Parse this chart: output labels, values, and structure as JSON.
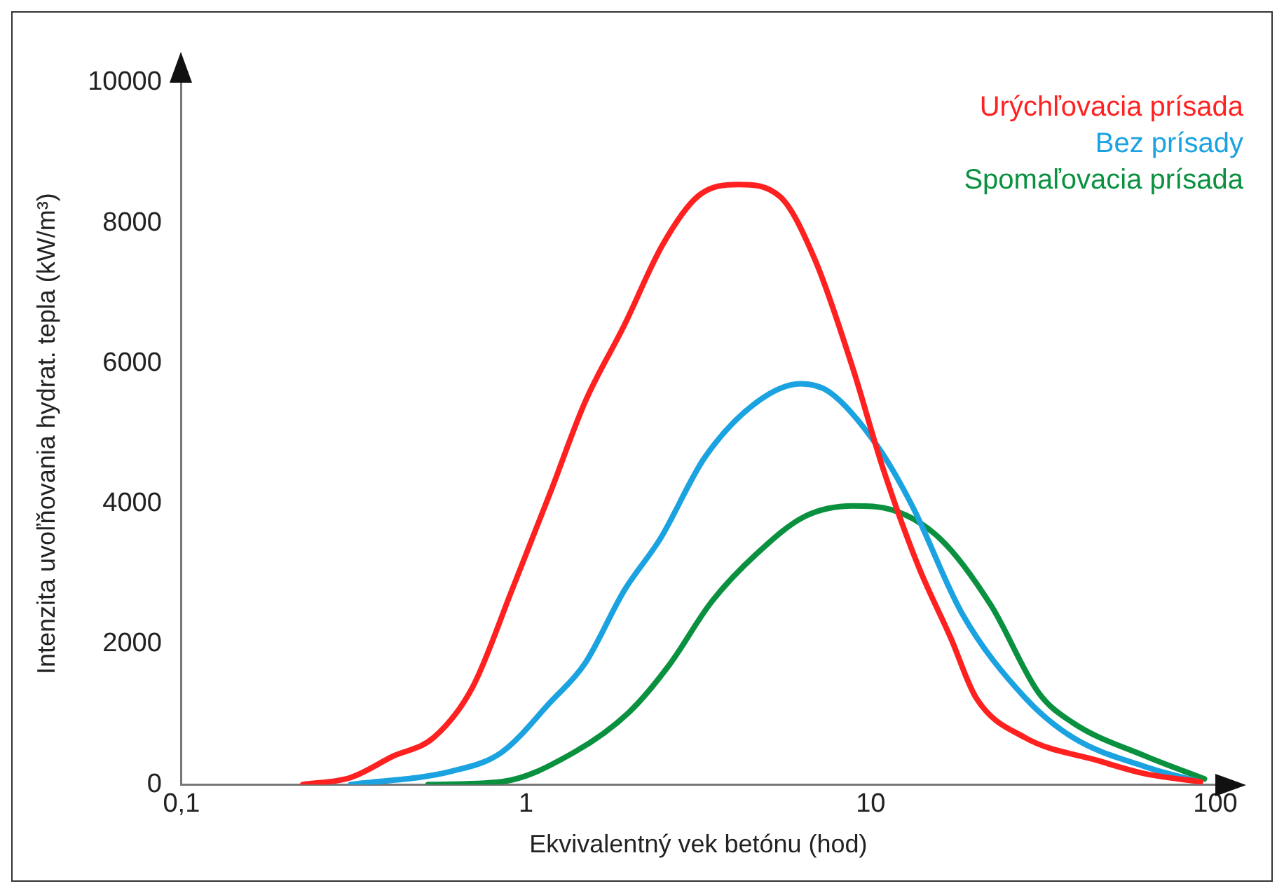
{
  "chart_data": {
    "type": "line",
    "xlabel": "Ekvivalentný vek betónu (hod)",
    "ylabel": "Intenzita uvoľňovania hydrat. tepla (kW/m³)",
    "log": "x",
    "xlim": [
      0.1,
      100
    ],
    "xticks": [
      {
        "value": 0.1,
        "label": "0,1"
      },
      1,
      10,
      100
    ],
    "ylim": [
      0,
      10000
    ],
    "yticks": [
      0,
      2000,
      4000,
      6000,
      8000,
      10000
    ],
    "grid": false,
    "legend": "top right",
    "marker": "none",
    "line_style": "solid",
    "series": [
      {
        "name": "Urýchľovacia prísada",
        "color": "#ff2020",
        "x": [
          0.225,
          0.31,
          0.41,
          0.54,
          0.7,
          0.91,
          1.18,
          1.48,
          1.93,
          2.49,
          3.15,
          4.14,
          5.45,
          6.89,
          8.89,
          10.8,
          13.7,
          17.1,
          20.2,
          28,
          45.7,
          63,
          90.6
        ],
        "values": [
          0,
          100,
          400,
          670,
          1390,
          2770,
          4180,
          5440,
          6550,
          7690,
          8380,
          8550,
          8380,
          7480,
          5920,
          4540,
          3130,
          2080,
          1240,
          670,
          340,
          150,
          40
        ]
      },
      {
        "name": "Bez prísady",
        "color": "#1aa3e0",
        "x": [
          0.31,
          0.61,
          0.85,
          1.18,
          1.48,
          1.93,
          2.45,
          3.3,
          4.65,
          6.25,
          7.6,
          10.5,
          13.2,
          18.4,
          28,
          38.6,
          63,
          90
        ],
        "values": [
          0,
          190,
          460,
          1180,
          1720,
          2770,
          3500,
          4660,
          5440,
          5710,
          5590,
          4810,
          3970,
          2440,
          1240,
          670,
          250,
          40
        ]
      },
      {
        "name": "Spomaľovacia prísada",
        "color": "#0a9140",
        "x": [
          0.52,
          0.85,
          1.38,
          1.99,
          2.6,
          3.45,
          4.65,
          6.44,
          8.89,
          11.6,
          16,
          22.3,
          30.8,
          38.6,
          63,
          93
        ],
        "values": [
          0,
          40,
          460,
          1030,
          1700,
          2600,
          3280,
          3820,
          3970,
          3910,
          3490,
          2560,
          1300,
          880,
          400,
          80
        ]
      }
    ]
  }
}
